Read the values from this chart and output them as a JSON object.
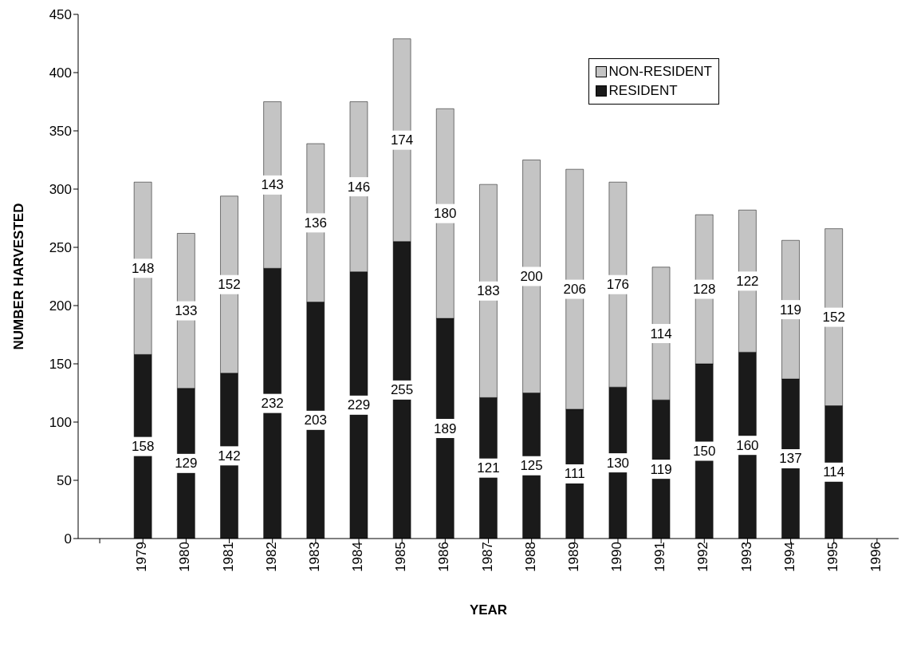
{
  "chart_data": {
    "type": "bar",
    "stacked": true,
    "xlabel": "YEAR",
    "ylabel": "NUMBER HARVESTED",
    "categories": [
      null,
      "1979",
      "1980",
      "1981",
      "1982",
      "1983",
      "1984",
      "1985",
      "1986",
      "1987",
      "1988",
      "1989",
      "1990",
      "1991",
      "1992",
      "1993",
      "1994",
      "1995",
      "1996"
    ],
    "series": [
      {
        "name": "RESIDENT",
        "color": "#1a1a1a",
        "values": [
          null,
          158,
          129,
          142,
          232,
          203,
          229,
          255,
          189,
          121,
          125,
          111,
          130,
          119,
          150,
          160,
          137,
          114,
          null
        ]
      },
      {
        "name": "NON-RESIDENT",
        "color": "#c4c4c4",
        "values": [
          null,
          148,
          133,
          152,
          143,
          136,
          146,
          174,
          180,
          183,
          200,
          206,
          176,
          114,
          128,
          122,
          119,
          152,
          null
        ]
      }
    ],
    "ylim": [
      0,
      450
    ],
    "yticks": [
      0,
      50,
      100,
      150,
      200,
      250,
      300,
      350,
      400,
      450
    ],
    "data_labels": true,
    "legend": "top right"
  }
}
